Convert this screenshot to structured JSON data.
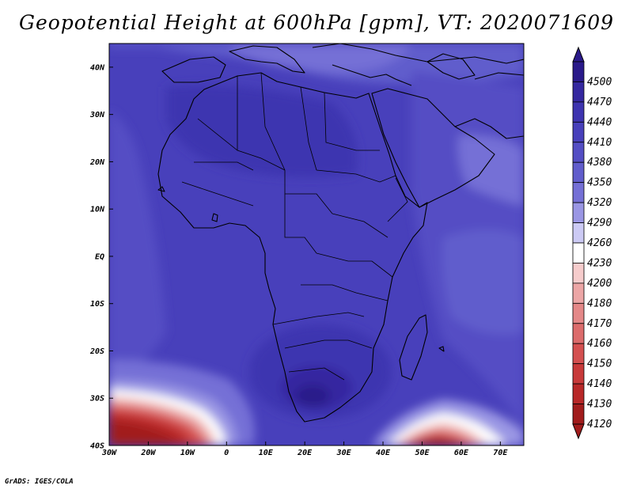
{
  "title": "Geopotential Height at 600hPa [gpm], VT: 2020071609",
  "credit": "GrADS: IGES/COLA",
  "map": {
    "lon_range": [
      -30,
      76
    ],
    "lat_range": [
      -40,
      45
    ],
    "x_ticks": [
      {
        "value": -30,
        "label": "30W"
      },
      {
        "value": -20,
        "label": "20W"
      },
      {
        "value": -10,
        "label": "10W"
      },
      {
        "value": 0,
        "label": "0"
      },
      {
        "value": 10,
        "label": "10E"
      },
      {
        "value": 20,
        "label": "20E"
      },
      {
        "value": 30,
        "label": "30E"
      },
      {
        "value": 40,
        "label": "40E"
      },
      {
        "value": 50,
        "label": "50E"
      },
      {
        "value": 60,
        "label": "60E"
      },
      {
        "value": 70,
        "label": "70E"
      }
    ],
    "y_ticks": [
      {
        "value": 40,
        "label": "40N"
      },
      {
        "value": 30,
        "label": "30N"
      },
      {
        "value": 20,
        "label": "20N"
      },
      {
        "value": 10,
        "label": "10N"
      },
      {
        "value": 0,
        "label": "EQ"
      },
      {
        "value": -10,
        "label": "10S"
      },
      {
        "value": -20,
        "label": "20S"
      },
      {
        "value": -30,
        "label": "30S"
      },
      {
        "value": -40,
        "label": "40S"
      }
    ]
  },
  "colorbar": {
    "levels": [
      {
        "label": "4500",
        "color": "#2a1a8a"
      },
      {
        "label": "4470",
        "color": "#3528a0"
      },
      {
        "label": "4440",
        "color": "#3e34b0"
      },
      {
        "label": "4410",
        "color": "#4840bb"
      },
      {
        "label": "4380",
        "color": "#544ec4"
      },
      {
        "label": "4350",
        "color": "#615dcc"
      },
      {
        "label": "4320",
        "color": "#7570d6"
      },
      {
        "label": "4290",
        "color": "#9a96e4"
      },
      {
        "label": "4260",
        "color": "#cccaf4"
      },
      {
        "label": "4230",
        "color": "#ffffff"
      },
      {
        "label": "4200",
        "color": "#f6cccc"
      },
      {
        "label": "4180",
        "color": "#eca6a6"
      },
      {
        "label": "4170",
        "color": "#e48888"
      },
      {
        "label": "4160",
        "color": "#dc6c6c"
      },
      {
        "label": "4150",
        "color": "#d45050"
      },
      {
        "label": "4140",
        "color": "#c83a3a"
      },
      {
        "label": "4130",
        "color": "#b82828"
      },
      {
        "label": "4120",
        "color": "#a11c1c"
      }
    ]
  }
}
